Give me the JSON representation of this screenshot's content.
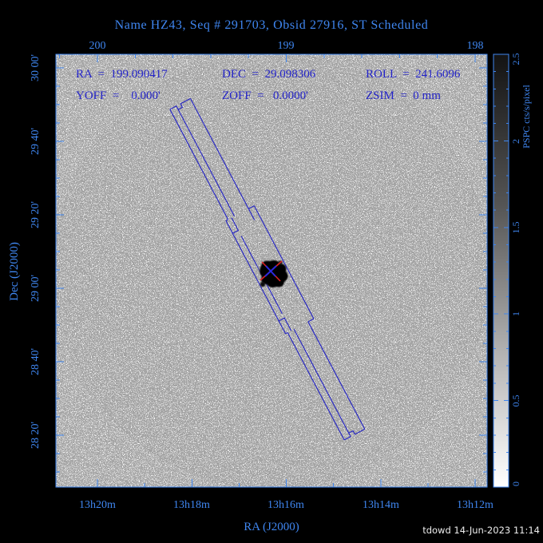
{
  "title": "Name HZ43, Seq # 291703, Obsid 27916, ST Scheduled",
  "info": {
    "row1": [
      "RA  =  199.090417",
      "DEC  =  29.098306",
      "ROLL  =  241.6096"
    ],
    "row2": [
      "YOFF  =    0.000'",
      "ZOFF  =   0.0000'",
      "ZSIM  =  0 mm"
    ]
  },
  "axes": {
    "top": {
      "labels": [
        "200",
        "199",
        "198"
      ]
    },
    "bottom": {
      "labels": [
        "13h20m",
        "13h18m",
        "13h16m",
        "13h14m",
        "13h12m"
      ],
      "title": "RA (J2000)"
    },
    "left": {
      "labels": [
        "30 00'",
        "29 40'",
        "29 20'",
        "29 00'",
        "28 40'",
        "28 20'"
      ],
      "title": "Dec (J2000)"
    }
  },
  "colorbar": {
    "labels": [
      "0",
      "0.5",
      "1",
      "1.5",
      "2",
      "2.5"
    ],
    "title": "PSPC cts/s/pixel"
  },
  "footer": {
    "credit": "tdowd 14-Jun-2023 11:14"
  },
  "colors": {
    "background": "#000000",
    "axis_blue": "#3f86f0",
    "annotation_blue": "#2323c8",
    "outline_blue": "#2121c4",
    "marker_red": "#dd2222",
    "marker_blue": "#2a2ae0",
    "plot_background": "#ffffff",
    "source_color": "#000000"
  },
  "chart_data": {
    "type": "heatmap",
    "description": "X-ray sky image of white dwarf HZ43 (PSPC counts image, inverted grayscale: white=0, black=max) with tilted 3-segment spectrometer aperture outline and source markers",
    "title": "Name HZ43, Seq # 291703, Obsid 27916, ST Scheduled",
    "x_axis": {
      "label": "RA (J2000)",
      "top_major_deg": [
        200,
        199,
        198
      ],
      "top_minor_step_deg": 0.2,
      "bottom_major_deg": [
        200,
        199.5,
        199,
        198.5,
        198
      ],
      "bottom_minor_step_deg": 0.25,
      "bottom_labels": [
        "13h20m",
        "13h18m",
        "13h16m",
        "13h14m",
        "13h12m"
      ],
      "range_deg": [
        200.22,
        197.94
      ]
    },
    "y_axis": {
      "label": "Dec (J2000)",
      "major_arcmin": [
        1800,
        1780,
        1760,
        1740,
        1720,
        1700
      ],
      "minor_step_arcmin": 5,
      "labels": [
        "30 00'",
        "29 40'",
        "29 20'",
        "29 00'",
        "28 40'",
        "28 20'"
      ],
      "range_deg": [
        28.1,
        30.06
      ]
    },
    "colorbar": {
      "label": "PSPC cts/s/pixel",
      "range": [
        0,
        2.5
      ],
      "major_ticks": [
        0,
        0.5,
        1,
        1.5,
        2,
        2.5
      ],
      "minor_step": 0.1,
      "colormap": "inverted-grayscale"
    },
    "pointing": {
      "ra_deg": 199.090417,
      "dec_deg": 29.098306,
      "roll_deg": 241.6096,
      "yoff": "0.000'",
      "zoff": "0.0000'",
      "zsim": "0 mm"
    },
    "source": {
      "name": "HZ43",
      "marker_red_x": true,
      "marker_blue_x": true
    },
    "detector_outline": {
      "segments": 3,
      "rotation_deg_from_vertical": 27.8
    },
    "status": "ST Scheduled",
    "seq": "291703",
    "obsid": "27916"
  }
}
